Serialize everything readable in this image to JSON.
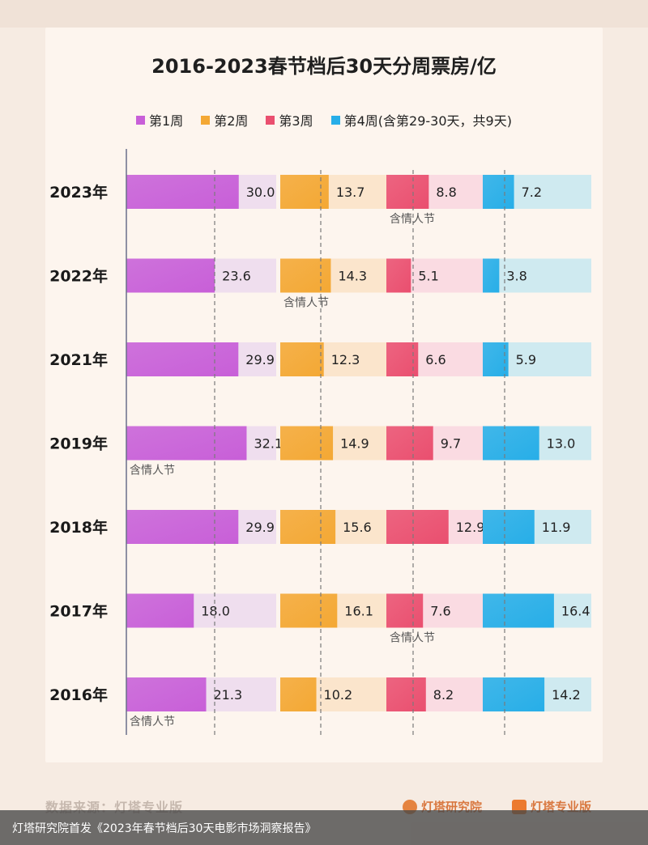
{
  "chart_data": {
    "type": "bar",
    "title": "2016-2023春节档后30天分周票房/亿",
    "categories": [
      "2023年",
      "2022年",
      "2021年",
      "2019年",
      "2018年",
      "2017年",
      "2016年"
    ],
    "series": [
      {
        "name": "第1周",
        "values": [
          30.0,
          23.6,
          29.9,
          32.1,
          29.9,
          18.0,
          21.3
        ],
        "color": "#c85fd8",
        "track": "#efdeee"
      },
      {
        "name": "第2周",
        "values": [
          13.7,
          14.3,
          12.3,
          14.9,
          15.6,
          16.1,
          10.2
        ],
        "color": "#f4a834",
        "track": "#fbe5cc"
      },
      {
        "name": "第3周",
        "values": [
          8.8,
          5.1,
          6.6,
          9.7,
          12.9,
          7.6,
          8.2
        ],
        "color": "#ea4f6f",
        "track": "#fadbe2"
      },
      {
        "name": "第4周(含第29-30天，共9天)",
        "values": [
          7.2,
          3.8,
          5.9,
          13.0,
          11.9,
          16.4,
          14.2
        ],
        "color": "#27aee8",
        "track": "#cfeaf0"
      }
    ],
    "annotations": [
      {
        "text": "含情人节",
        "category": "2023年",
        "series": 2
      },
      {
        "text": "含情人节",
        "category": "2022年",
        "series": 1
      },
      {
        "text": "含情人节",
        "category": "2019年",
        "series": 0
      },
      {
        "text": "含情人节",
        "category": "2017年",
        "series": 2
      },
      {
        "text": "含情人节",
        "category": "2016年",
        "series": 0
      }
    ],
    "xlim": [
      [
        0,
        40
      ],
      [
        0,
        30
      ],
      [
        0,
        20
      ],
      [
        0,
        25
      ]
    ],
    "grid": false,
    "legend": "top-center"
  },
  "footer": {
    "source": "数据来源：灯塔专业版",
    "logo1": "灯塔研究院",
    "logo2": "灯塔专业版"
  },
  "caption": "灯塔研究院首发《2023年春节档后30天电影市场洞察报告》"
}
